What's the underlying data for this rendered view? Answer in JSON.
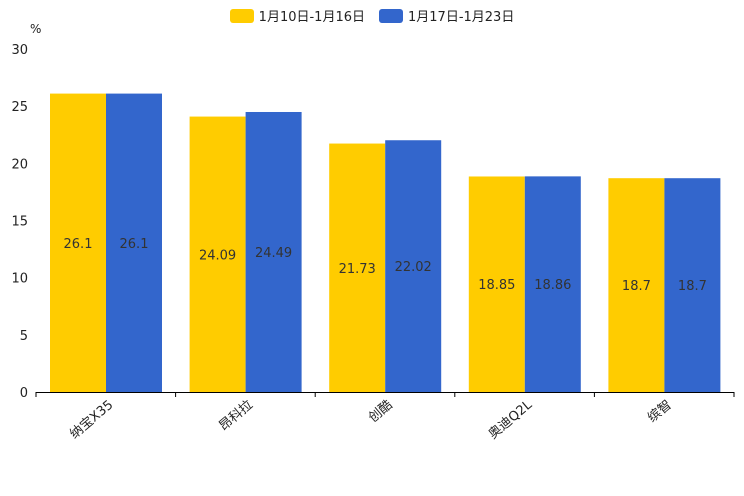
{
  "chart_data": {
    "type": "bar",
    "unit_label": "%",
    "categories": [
      "纳宝X35",
      "昂科拉",
      "创酷",
      "奥迪Q2L",
      "缤智"
    ],
    "series": [
      {
        "name": "1月10日-1月16日",
        "color": "#ffcc00",
        "values": [
          26.1,
          24.09,
          21.73,
          18.85,
          18.7
        ],
        "labels": [
          "26.1",
          "24.09",
          "21.73",
          "18.85",
          "18.7"
        ]
      },
      {
        "name": "1月17日-1月23日",
        "color": "#3366cc",
        "values": [
          26.1,
          24.49,
          22.02,
          18.86,
          18.7
        ],
        "labels": [
          "26.1",
          "24.49",
          "22.02",
          "18.86",
          "18.7"
        ]
      }
    ],
    "ylim": [
      0,
      30
    ],
    "yticks": [
      0,
      5,
      10,
      15,
      20,
      25,
      30
    ],
    "legend_position": "top-center"
  }
}
